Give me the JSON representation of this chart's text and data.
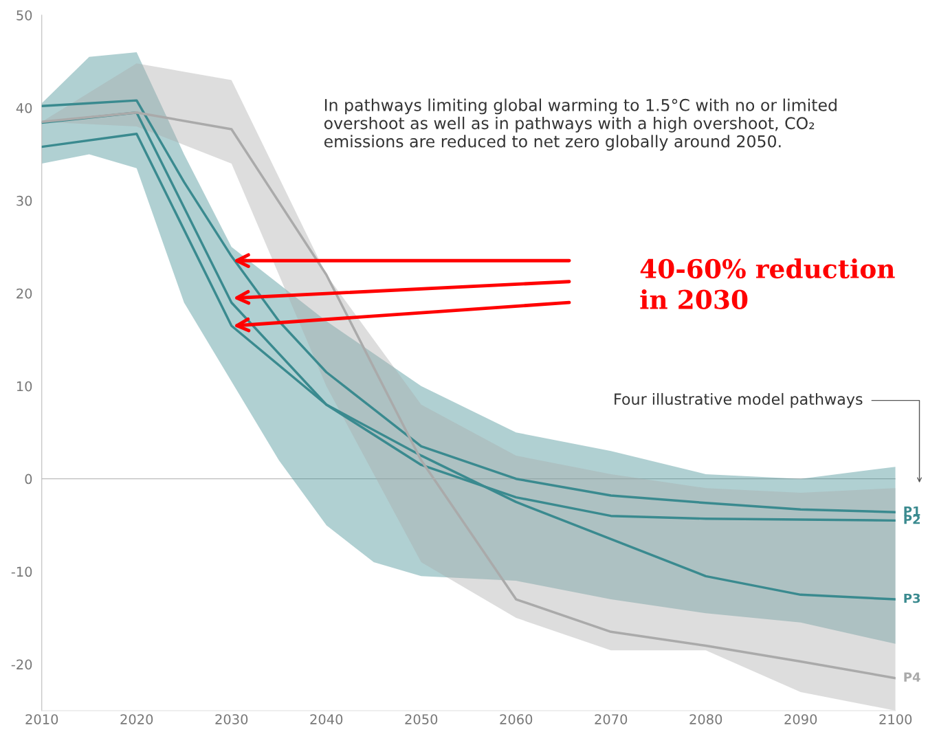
{
  "chart_data": {
    "type": "line",
    "xlim": [
      2010,
      2100
    ],
    "ylim": [
      -25,
      50
    ],
    "xticks": [
      2010,
      2020,
      2030,
      2040,
      2050,
      2060,
      2070,
      2080,
      2090,
      2100
    ],
    "yticks": [
      -20,
      -10,
      0,
      10,
      20,
      30,
      40,
      50
    ],
    "grid": false,
    "marker": "none",
    "line_style": "solid",
    "series": [
      {
        "name": "P1",
        "color": "#3a8a8f",
        "x": [
          2010,
          2015,
          2020,
          2025,
          2030,
          2035,
          2040,
          2045,
          2050,
          2060,
          2070,
          2080,
          2090,
          2100
        ],
        "values": [
          40.2,
          40.5,
          40.8,
          32,
          24,
          17,
          11.5,
          7.5,
          3.5,
          0,
          -1.8,
          -2.6,
          -3.3,
          -3.6
        ],
        "lower": [
          34,
          35,
          33.5,
          19,
          10.5,
          2,
          -5,
          -9,
          -10.5,
          -11,
          -13,
          -14.5,
          -15.5,
          -17.8
        ],
        "upper": [
          40.5,
          45.5,
          46,
          35,
          25,
          21,
          17,
          13.5,
          10,
          5,
          3,
          0.5,
          0,
          1.3
        ]
      },
      {
        "name": "P2",
        "color": "#3a8a8f",
        "x": [
          2010,
          2020,
          2030,
          2040,
          2050,
          2060,
          2070,
          2080,
          2090,
          2100
        ],
        "values": [
          38.4,
          39.5,
          19,
          8,
          1.5,
          -2,
          -4,
          -4.3,
          -4.4,
          -4.5
        ]
      },
      {
        "name": "P3",
        "color": "#3a8a8f",
        "x": [
          2010,
          2020,
          2030,
          2040,
          2050,
          2060,
          2070,
          2080,
          2090,
          2100
        ],
        "values": [
          35.8,
          37.2,
          16.5,
          8,
          2.5,
          -2.5,
          -6.5,
          -10.5,
          -12.5,
          -13
        ]
      },
      {
        "name": "P4",
        "color": "#aaaaaa",
        "x": [
          2010,
          2020,
          2030,
          2040,
          2050,
          2060,
          2070,
          2080,
          2090,
          2100
        ],
        "values": [
          38.5,
          39.5,
          37.7,
          22,
          2,
          -13,
          -16.5,
          -18,
          -19.7,
          -21.5
        ],
        "lower": [
          38.5,
          38,
          34,
          10,
          -9,
          -15,
          -18.5,
          -18.5,
          -23,
          -25
        ],
        "upper": [
          38.5,
          44.8,
          43,
          22,
          8,
          2.5,
          0.5,
          -1,
          -1.5,
          -1
        ]
      }
    ],
    "ref_lines": [
      {
        "axis": "y",
        "value": 0,
        "color": "#bbbbbb"
      }
    ],
    "annotations": [
      "In pathways limiting global warming to 1.5°C with no or limited overshoot as well as in pathways with a high overshoot, CO₂ emissions are reduced to net zero globally around 2050.",
      "Four illustrative model pathways",
      "40-60% reduction\nin 2030"
    ]
  }
}
